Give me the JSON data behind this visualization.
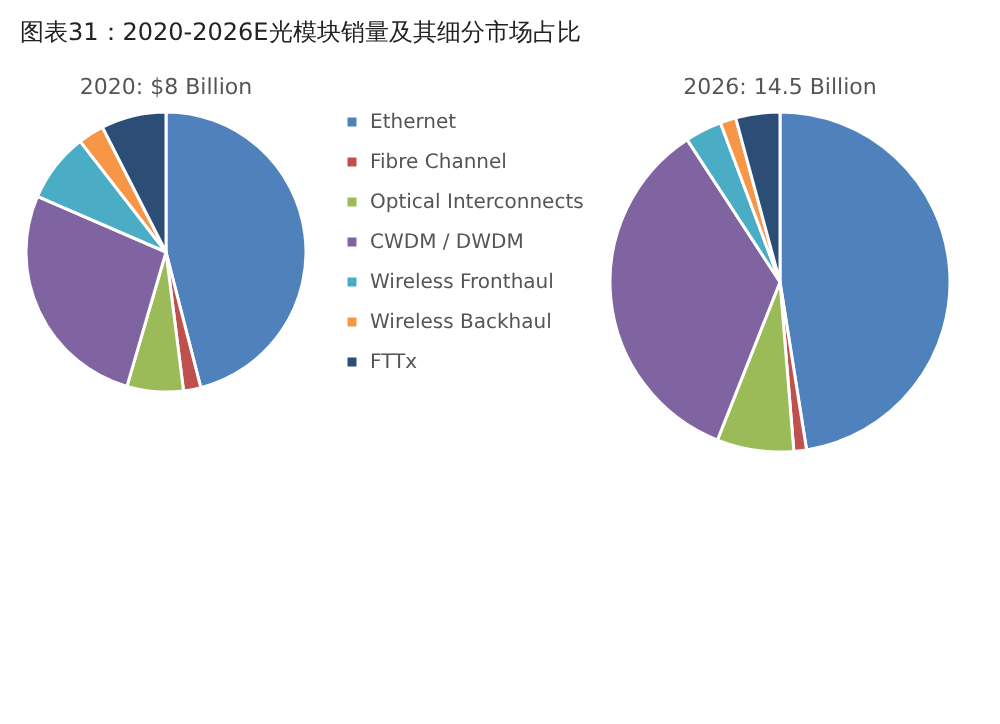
{
  "chart_data": [
    {
      "type": "pie",
      "title": "图表31：2020-2026E光模块销量及其细分市场占比",
      "subtitle": "2020: $8 Billion",
      "legend": "right",
      "categories": [
        "Ethernet",
        "Fibre Channel",
        "Optical Interconnects",
        "CWDM / DWDM",
        "Wireless Fronthaul",
        "Wireless Backhaul",
        "FTTx"
      ],
      "values": [
        46,
        2,
        6.5,
        27,
        8,
        3,
        7.5
      ],
      "colors": [
        "#4f81bd",
        "#c0504d",
        "#9bbb59",
        "#8064a2",
        "#4bacc6",
        "#f79646",
        "#2c4d75"
      ]
    },
    {
      "type": "pie",
      "subtitle": "2026: 14.5 Billion",
      "legend": false,
      "categories": [
        null,
        null,
        null,
        null,
        null,
        null,
        null
      ],
      "values": [
        47.5,
        1.2,
        7.3,
        34.8,
        3.5,
        1.5,
        4.2
      ],
      "colors": [
        "#4f81bd",
        "#c0504d",
        "#9bbb59",
        "#8064a2",
        "#4bacc6",
        "#f79646",
        "#2c4d75"
      ]
    }
  ]
}
